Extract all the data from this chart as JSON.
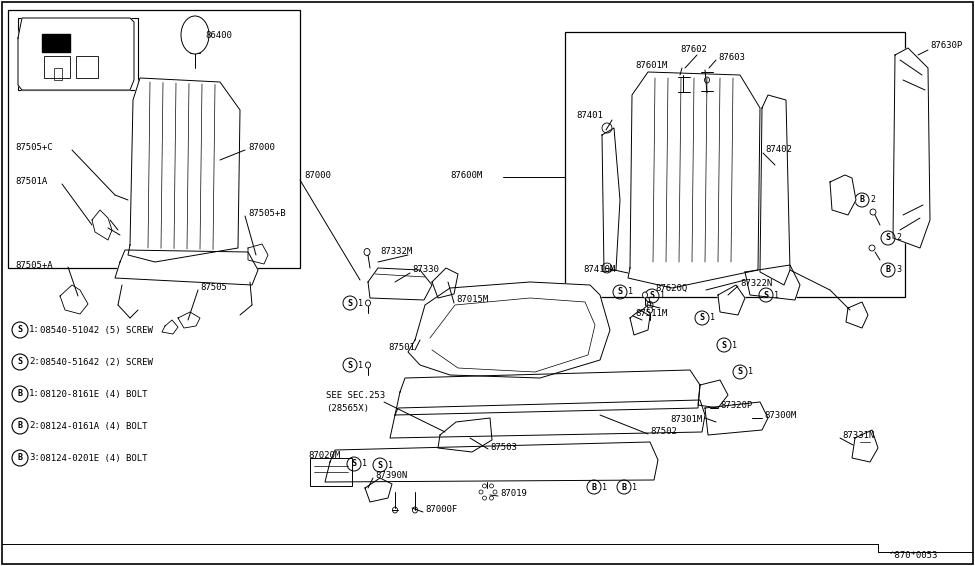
{
  "bg_color": "#ffffff",
  "line_color": "#000000",
  "diagram_ref": "^870*0053",
  "fig_width": 9.75,
  "fig_height": 5.66,
  "dpi": 100,
  "legend": [
    {
      "sym": "S",
      "num": "1",
      "text": "08540-51042 (5) SCREW"
    },
    {
      "sym": "S",
      "num": "2",
      "text": "08540-51642 (2) SCREW"
    },
    {
      "sym": "B",
      "num": "1",
      "text": "08120-8161E (4) BOLT"
    },
    {
      "sym": "B",
      "num": "2",
      "text": "08124-0161A (4) BOLT"
    },
    {
      "sym": "B",
      "num": "3",
      "text": "08124-0201E (4) BOLT"
    }
  ]
}
